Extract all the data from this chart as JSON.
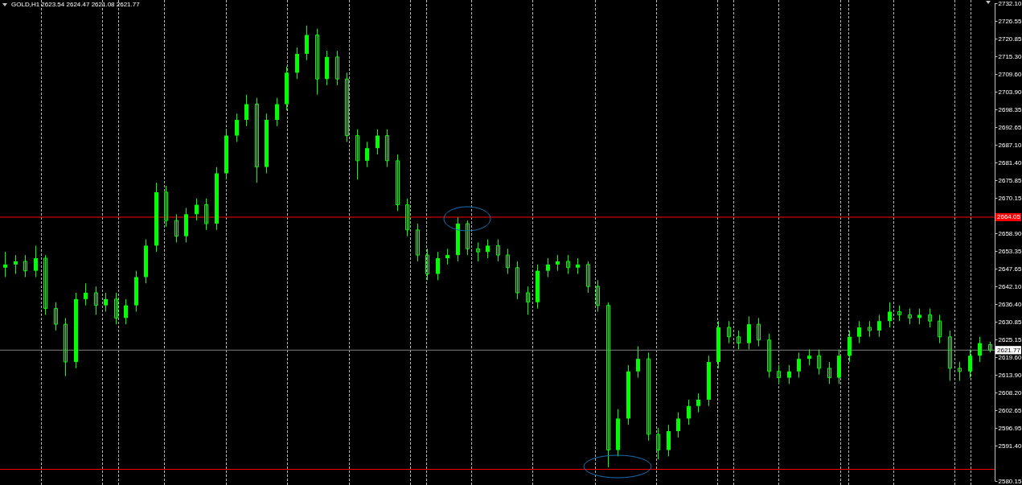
{
  "chart_data": {
    "type": "candlestick",
    "title": "GOLD,H1 2623.54 2624.47 2621.08 2621.77",
    "tick_labels": "y",
    "grid": "x",
    "color": "#00ff00",
    "categories": [
      null,
      null,
      null,
      null,
      null,
      null,
      null,
      null,
      null,
      null,
      null,
      null,
      null,
      null,
      null,
      null,
      null,
      null,
      null,
      null,
      null,
      null,
      null,
      null,
      null,
      null,
      null,
      null,
      null,
      null,
      null,
      null,
      null,
      null,
      null,
      null,
      null,
      null,
      null,
      null,
      null,
      null,
      null,
      null,
      null,
      null,
      null,
      null,
      null,
      null,
      null,
      null,
      null,
      null,
      null,
      null,
      null,
      null,
      null,
      null,
      null,
      null,
      null,
      null,
      null,
      null,
      null,
      null,
      null,
      null,
      null,
      null,
      null,
      null,
      null,
      null,
      null,
      null,
      null,
      null,
      null,
      null,
      null,
      null,
      null,
      null,
      null,
      null,
      null,
      null,
      null,
      null,
      null,
      null,
      null,
      null,
      null,
      null,
      null
    ],
    "ohlc": [
      [
        2648,
        2653,
        2645,
        2649
      ],
      [
        2649,
        2652,
        2646,
        2650
      ],
      [
        2650,
        2652,
        2645,
        2647
      ],
      [
        2647,
        2655,
        2645,
        2651
      ],
      [
        2651,
        2652,
        2633,
        2635
      ],
      [
        2635,
        2637,
        2628,
        2630
      ],
      [
        2630,
        2632,
        2613.5,
        2618
      ],
      [
        2618,
        2640,
        2616,
        2638
      ],
      [
        2638,
        2643,
        2636,
        2640
      ],
      [
        2640,
        2642,
        2633,
        2636
      ],
      [
        2636,
        2640,
        2634,
        2638
      ],
      [
        2638,
        2640,
        2630,
        2632
      ],
      [
        2632,
        2638,
        2630,
        2636
      ],
      [
        2636,
        2647,
        2634,
        2645
      ],
      [
        2645,
        2657,
        2643,
        2655
      ],
      [
        2655,
        2675,
        2653,
        2672
      ],
      [
        2672,
        2674,
        2661,
        2663
      ],
      [
        2663,
        2665,
        2656,
        2658
      ],
      [
        2658,
        2667,
        2656,
        2665
      ],
      [
        2665,
        2670,
        2663,
        2668
      ],
      [
        2668,
        2670,
        2660,
        2662
      ],
      [
        2662,
        2680,
        2660,
        2678
      ],
      [
        2678,
        2692,
        2676,
        2690
      ],
      [
        2690,
        2697,
        2688,
        2695
      ],
      [
        2695,
        2703,
        2693,
        2700
      ],
      [
        2700,
        2702,
        2675,
        2680
      ],
      [
        2680,
        2697,
        2678,
        2695
      ],
      [
        2695,
        2702,
        2693,
        2700
      ],
      [
        2700,
        2712,
        2698,
        2710
      ],
      [
        2710,
        2718,
        2708,
        2716
      ],
      [
        2716,
        2725,
        2714,
        2722
      ],
      [
        2722,
        2724,
        2703,
        2708
      ],
      [
        2708,
        2717,
        2706,
        2715
      ],
      [
        2715,
        2717,
        2706,
        2708
      ],
      [
        2708,
        2710,
        2688,
        2690
      ],
      [
        2690,
        2692,
        2676,
        2682
      ],
      [
        2682,
        2688,
        2680,
        2686
      ],
      [
        2686,
        2692,
        2684,
        2690
      ],
      [
        2690,
        2692,
        2680,
        2682
      ],
      [
        2682,
        2684,
        2666,
        2668
      ],
      [
        2668,
        2670,
        2658,
        2660
      ],
      [
        2660,
        2662,
        2650,
        2652
      ],
      [
        2652,
        2654,
        2644,
        2646
      ],
      [
        2646,
        2653,
        2644,
        2651
      ],
      [
        2651,
        2654,
        2649,
        2652
      ],
      [
        2652,
        2664,
        2650,
        2662
      ],
      [
        2662,
        2663,
        2652,
        2654
      ],
      [
        2654,
        2656,
        2650,
        2653
      ],
      [
        2653,
        2657,
        2651,
        2655
      ],
      [
        2655,
        2657,
        2650,
        2652
      ],
      [
        2652,
        2654,
        2646,
        2648
      ],
      [
        2648,
        2650,
        2638,
        2640
      ],
      [
        2640,
        2642,
        2633,
        2637
      ],
      [
        2637,
        2649,
        2635,
        2647
      ],
      [
        2647,
        2651,
        2645,
        2649
      ],
      [
        2649,
        2652,
        2647,
        2650
      ],
      [
        2650,
        2652,
        2646,
        2648
      ],
      [
        2648,
        2651,
        2646,
        2649
      ],
      [
        2649,
        2650,
        2640,
        2642
      ],
      [
        2642,
        2644,
        2634,
        2636
      ],
      [
        2636,
        2637,
        2584.5,
        2590
      ],
      [
        2590,
        2603,
        2588,
        2600
      ],
      [
        2600,
        2617,
        2598,
        2615
      ],
      [
        2615,
        2623,
        2613,
        2619
      ],
      [
        2619,
        2621,
        2593,
        2595
      ],
      [
        2595,
        2597,
        2587,
        2590
      ],
      [
        2590,
        2598,
        2588,
        2596
      ],
      [
        2596,
        2602,
        2594,
        2600
      ],
      [
        2600,
        2606,
        2598,
        2604
      ],
      [
        2604,
        2608,
        2602,
        2606
      ],
      [
        2606,
        2620,
        2604,
        2618
      ],
      [
        2618,
        2631,
        2616,
        2629
      ],
      [
        2629,
        2631,
        2624,
        2626
      ],
      [
        2626,
        2628,
        2622,
        2624
      ],
      [
        2624,
        2632.5,
        2622,
        2630
      ],
      [
        2630,
        2632,
        2623,
        2625
      ],
      [
        2625,
        2627,
        2613,
        2615
      ],
      [
        2615,
        2617,
        2611,
        2613
      ],
      [
        2613,
        2617,
        2611,
        2615
      ],
      [
        2615,
        2621,
        2613,
        2619
      ],
      [
        2619,
        2622,
        2617,
        2620
      ],
      [
        2620,
        2622,
        2614,
        2616
      ],
      [
        2616,
        2618,
        2611,
        2613
      ],
      [
        2613,
        2622,
        2611,
        2620
      ],
      [
        2620,
        2628,
        2618,
        2626
      ],
      [
        2626,
        2631,
        2624,
        2629
      ],
      [
        2629,
        2631,
        2626,
        2628
      ],
      [
        2628,
        2633,
        2626,
        2631
      ],
      [
        2631,
        2637,
        2629,
        2634
      ],
      [
        2634,
        2636,
        2631,
        2633
      ],
      [
        2633,
        2635,
        2630,
        2632
      ],
      [
        2632,
        2635,
        2630,
        2633
      ],
      [
        2633,
        2635,
        2629,
        2631
      ],
      [
        2631,
        2633,
        2624,
        2626
      ],
      [
        2626,
        2628,
        2612,
        2616
      ],
      [
        2616,
        2618,
        2612,
        2615
      ],
      [
        2615,
        2622,
        2613,
        2620
      ],
      [
        2620,
        2626,
        2618,
        2624
      ],
      [
        2623.54,
        2624.47,
        2621.08,
        2621.77
      ]
    ],
    "ylim": [
      2580.15,
      2732.1
    ],
    "yticks": [
      {
        "value": 2732.1,
        "label": "2732.10"
      },
      2726.55,
      2720.85,
      {
        "value": 2715.3,
        "label": "2715.30"
      },
      {
        "value": 2709.6,
        "label": "2709.60"
      },
      {
        "value": 2703.9,
        "label": "2703.90"
      },
      2698.35,
      2692.65,
      {
        "value": 2687.1,
        "label": "2687.10"
      },
      {
        "value": 2681.4,
        "label": "2681.40"
      },
      2675.85,
      2670.15,
      {
        "value": 2658.9,
        "label": "2658.90"
      },
      2653.35,
      2647.65,
      {
        "value": 2642.1,
        "label": "2642.10"
      },
      {
        "value": 2636.4,
        "label": "2636.40"
      },
      2630.85,
      2625.15,
      {
        "value": 2619.6,
        "label": "2619.60"
      },
      {
        "value": 2613.9,
        "label": "2613.90"
      },
      {
        "value": 2608.2,
        "label": "2608.20"
      },
      2602.65,
      2596.95,
      {
        "value": 2591.4,
        "label": "2591.40"
      },
      2580.15
    ],
    "ref_lines": [
      {
        "axis": "y",
        "value": 2664.05,
        "label": "2664.05",
        "color": "#ff0000"
      },
      {
        "axis": "y",
        "value": 2621.77,
        "label": "2621.77",
        "color": "#808080"
      },
      {
        "axis": "y",
        "value": 2583.85,
        "label": null,
        "color": "#ff0000"
      }
    ]
  }
}
